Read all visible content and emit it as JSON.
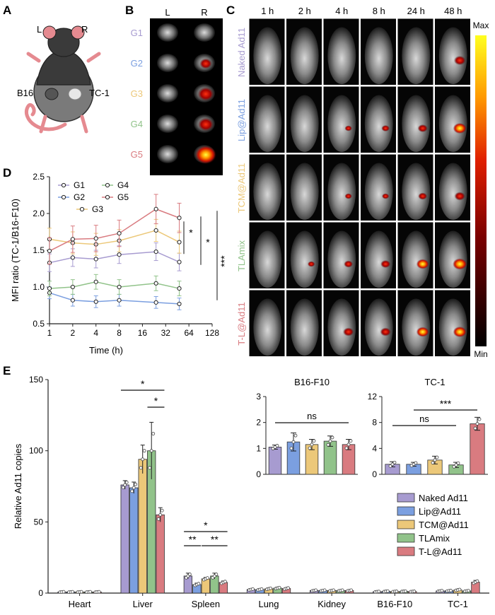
{
  "panels": {
    "A": "A",
    "B": "B",
    "C": "C",
    "D": "D",
    "E": "E"
  },
  "colors": {
    "g1": "#a79bd0",
    "g2": "#7b9fe0",
    "g3": "#ecc879",
    "g4": "#91c38a",
    "g5": "#d97b80",
    "axis": "#222222",
    "sig": "#111111"
  },
  "panelA": {
    "left": "L",
    "right": "R",
    "tumor_left": "B16",
    "tumor_right": "TC-1"
  },
  "panelB": {
    "col_left": "L",
    "col_right": "R",
    "rows": [
      "G1",
      "G2",
      "G3",
      "G4",
      "G5"
    ]
  },
  "panelC": {
    "times": [
      "1 h",
      "2 h",
      "4 h",
      "8 h",
      "24 h",
      "48 h"
    ],
    "groups": [
      "Naked Ad11",
      "Lip@Ad11",
      "TCM@Ad11",
      "TLAmix",
      "T-L@Ad11"
    ],
    "colorbar_max": "Max",
    "colorbar_min": "Min"
  },
  "chart_data": [
    {
      "id": "D",
      "type": "line",
      "ylabel": "MFI ratio (TC-1/B16-F10)",
      "xlabel": "Time (h)",
      "x": [
        1,
        2,
        4,
        8,
        24,
        48
      ],
      "x_scale": "log2",
      "xticks": [
        "1",
        "2",
        "4",
        "8",
        "16",
        "32",
        "64",
        "128"
      ],
      "ylim": [
        0.5,
        2.5
      ],
      "yticks": [
        "0.5",
        "1.0",
        "1.5",
        "2.0",
        "2.5"
      ],
      "series": [
        {
          "name": "G1",
          "values": [
            1.33,
            1.4,
            1.38,
            1.44,
            1.48,
            1.34
          ],
          "error": [
            0.12,
            0.12,
            0.12,
            0.12,
            0.12,
            0.12
          ]
        },
        {
          "name": "G2",
          "values": [
            0.92,
            0.82,
            0.8,
            0.82,
            0.79,
            0.77
          ],
          "error": [
            0.08,
            0.08,
            0.08,
            0.08,
            0.08,
            0.08
          ]
        },
        {
          "name": "G3",
          "values": [
            1.65,
            1.6,
            1.58,
            1.63,
            1.77,
            1.61
          ],
          "error": [
            0.15,
            0.15,
            0.15,
            0.15,
            0.15,
            0.15
          ]
        },
        {
          "name": "G4",
          "values": [
            0.98,
            1.0,
            1.07,
            1.0,
            1.05,
            0.98
          ],
          "error": [
            0.1,
            0.1,
            0.1,
            0.1,
            0.1,
            0.1
          ]
        },
        {
          "name": "G5",
          "values": [
            1.49,
            1.65,
            1.66,
            1.73,
            2.06,
            1.94
          ],
          "error": [
            0.18,
            0.18,
            0.18,
            0.18,
            0.2,
            0.2
          ]
        }
      ],
      "legend": [
        "G1",
        "G2",
        "G3",
        "G4",
        "G5"
      ],
      "significance": [
        "*",
        "*",
        "***"
      ]
    },
    {
      "id": "E",
      "type": "bar",
      "ylabel": "Relative Ad11 copies",
      "categories": [
        "Heart",
        "Liver",
        "Spleen",
        "Lung",
        "Kidney",
        "B16-F10",
        "TC-1"
      ],
      "ylim": [
        0,
        150
      ],
      "yticks": [
        "0",
        "50",
        "100",
        "150"
      ],
      "series": [
        {
          "name": "Naked Ad11",
          "values": [
            0.8,
            76,
            12,
            2.5,
            1.8,
            1.0,
            1.5
          ],
          "error": [
            0.2,
            3,
            2,
            0.5,
            0.4,
            0.2,
            0.3
          ]
        },
        {
          "name": "Lip@Ad11",
          "values": [
            0.8,
            74,
            6,
            2.5,
            1.8,
            1.2,
            1.6
          ],
          "error": [
            0.2,
            4,
            1,
            0.5,
            0.4,
            0.3,
            0.3
          ]
        },
        {
          "name": "TCM@Ad11",
          "values": [
            0.8,
            94,
            10,
            3,
            1.8,
            1.1,
            2.2
          ],
          "error": [
            0.2,
            10,
            1,
            0.6,
            0.4,
            0.2,
            0.5
          ]
        },
        {
          "name": "TLAmix",
          "values": [
            0.8,
            100,
            12,
            3.5,
            1.8,
            1.2,
            1.5
          ],
          "error": [
            0.2,
            20,
            2,
            0.6,
            0.4,
            0.2,
            0.3
          ]
        },
        {
          "name": "T-L@Ad11",
          "values": [
            0.8,
            55,
            7.5,
            3.2,
            1.8,
            1.1,
            7.7
          ],
          "error": [
            0.2,
            5,
            1,
            0.6,
            0.4,
            0.2,
            1.2
          ]
        }
      ],
      "legend": [
        "Naked Ad11",
        "Lip@Ad11",
        "TCM@Ad11",
        "TLAmix",
        "T-L@Ad11"
      ],
      "significance": [
        "*",
        "*",
        "*",
        "**",
        "**"
      ]
    },
    {
      "id": "E-inset-1",
      "type": "bar",
      "title": "B16-F10",
      "ylim": [
        0,
        3
      ],
      "yticks": [
        "0",
        "1",
        "2",
        "3"
      ],
      "values": [
        1.05,
        1.25,
        1.15,
        1.28,
        1.15
      ],
      "error": [
        0.08,
        0.35,
        0.2,
        0.2,
        0.2
      ],
      "significance": [
        "ns"
      ]
    },
    {
      "id": "E-inset-2",
      "type": "bar",
      "title": "TC-1",
      "ylim": [
        0,
        12
      ],
      "yticks": [
        "0",
        "4",
        "8",
        "12"
      ],
      "values": [
        1.55,
        1.55,
        2.2,
        1.45,
        7.8
      ],
      "error": [
        0.4,
        0.3,
        0.6,
        0.4,
        1.0
      ],
      "significance": [
        "ns",
        "***"
      ]
    }
  ]
}
